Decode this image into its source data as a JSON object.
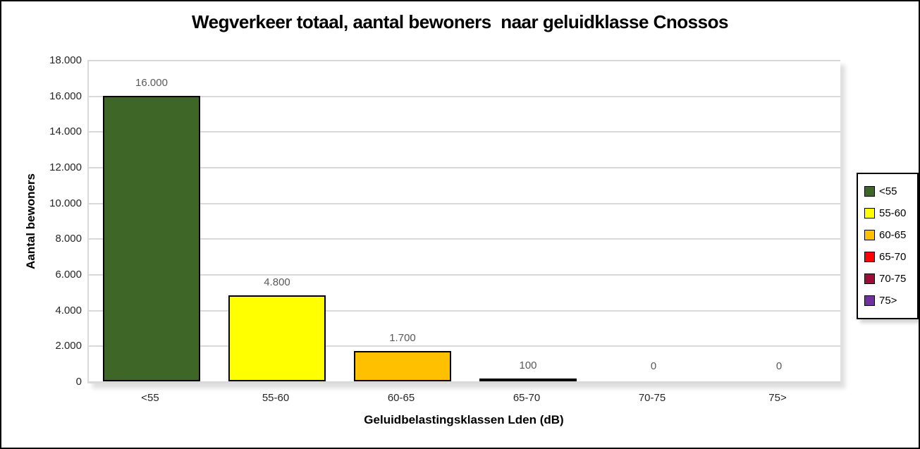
{
  "chart_data": {
    "type": "bar",
    "title": "Wegverkeer totaal, aantal bewoners  naar geluidklasse Cnossos",
    "xlabel": "Geluidbelastingsklassen Lden (dB)",
    "ylabel": "Aantal bewoners",
    "categories": [
      "<55",
      "55-60",
      "60-65",
      "65-70",
      "70-75",
      "75>"
    ],
    "values": [
      16000,
      4800,
      1700,
      100,
      0,
      0
    ],
    "value_labels": [
      "16.000",
      "4.800",
      "1.700",
      "100",
      "0",
      "0"
    ],
    "bar_colors": [
      "#3E6626",
      "#FFFF00",
      "#FFC000",
      "#FF0000",
      "#9E0B38",
      "#7030A0"
    ],
    "ylim": [
      0,
      18000
    ],
    "ytick_step": 2000,
    "ytick_labels": [
      "0",
      "2.000",
      "4.000",
      "6.000",
      "8.000",
      "10.000",
      "12.000",
      "14.000",
      "16.000",
      "18.000"
    ],
    "grid": true,
    "legend": {
      "position": "right",
      "entries": [
        {
          "label": "<55",
          "color": "#3E6626"
        },
        {
          "label": "55-60",
          "color": "#FFFF00"
        },
        {
          "label": "60-65",
          "color": "#FFC000"
        },
        {
          "label": "65-70",
          "color": "#FF0000"
        },
        {
          "label": "70-75",
          "color": "#9E0B38"
        },
        {
          "label": "75>",
          "color": "#7030A0"
        }
      ]
    }
  },
  "colors": {
    "gridline": "#D9D9D9",
    "bar_border": "#000000",
    "data_label": "#595959",
    "tick_label": "#262626",
    "frame_border": "#000000"
  }
}
